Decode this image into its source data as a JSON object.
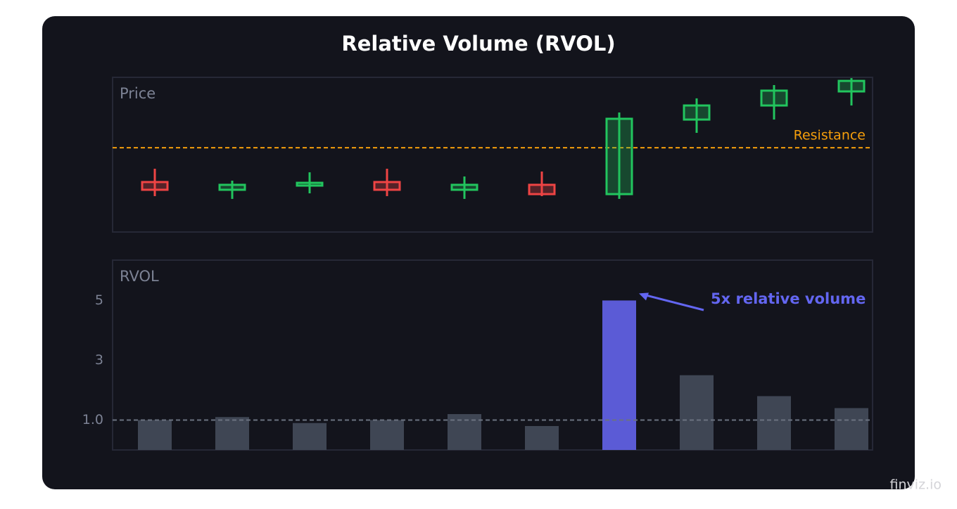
{
  "title": "Relative Volume (RVOL)",
  "watermark": "finviz.io",
  "chart_data": [
    {
      "type": "candlestick",
      "title": "Price",
      "series": [
        {
          "open": [
            32.3,
            27.3,
            30.0,
            32.3,
            27.3,
            30.5,
            24.5,
            72.7,
            81.8,
            90.9
          ],
          "high": [
            40.9,
            33.2,
            38.6,
            40.9,
            35.9,
            39.1,
            77.3,
            86.4,
            95.0,
            99.5
          ],
          "low": [
            23.2,
            21.4,
            25.0,
            23.2,
            21.4,
            23.2,
            21.4,
            64.1,
            72.7,
            81.8
          ],
          "close": [
            27.3,
            30.5,
            31.8,
            27.3,
            30.5,
            24.5,
            73.2,
            81.8,
            91.4,
            97.7
          ]
        }
      ],
      "up_color": "#22c55e",
      "down_color": "#ef4444",
      "ylim": [
        0,
        100
      ],
      "resistance": {
        "label": "Resistance",
        "value": 54.5,
        "color": "#f59e0b"
      }
    },
    {
      "type": "bar",
      "title": "RVOL",
      "values": [
        1.0,
        1.1,
        0.9,
        1.0,
        1.2,
        0.8,
        5.0,
        2.5,
        1.8,
        1.4
      ],
      "colors": [
        "#3f4654",
        "#3f4654",
        "#3f4654",
        "#3f4654",
        "#3f4654",
        "#3f4654",
        "#5b5bd6",
        "#3f4654",
        "#3f4654",
        "#3f4654"
      ],
      "ylim": [
        0,
        6.35
      ],
      "yticks": [
        5,
        3,
        {
          "value": 1,
          "label": "1.0"
        }
      ],
      "reference_line": {
        "value": 1,
        "color": "#6b7280"
      },
      "annotation": {
        "text": "5x relative volume",
        "index": 6,
        "color": "#6366f1"
      }
    }
  ]
}
